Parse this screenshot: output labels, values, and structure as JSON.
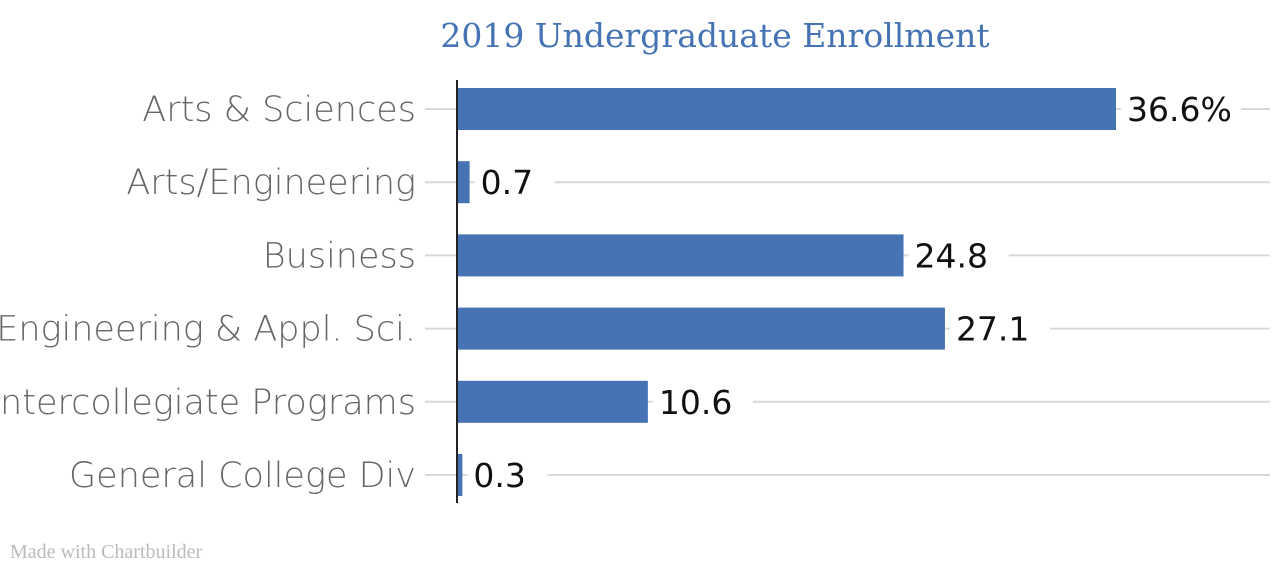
{
  "chart_data": {
    "type": "bar",
    "orientation": "horizontal",
    "title": "2019 Undergraduate Enrollment",
    "categories": [
      "Arts & Sciences",
      "Arts/Engineering",
      "Business",
      "Engineering & Appl. Sci.",
      "Intercollegiate Programs",
      "General College Div"
    ],
    "values": [
      36.6,
      0.7,
      24.8,
      27.1,
      10.6,
      0.3
    ],
    "data_labels": [
      "36.6%",
      "0.7",
      "24.8",
      "27.1",
      "10.6",
      "0.3"
    ],
    "xlim": [
      0,
      36.6
    ],
    "grid": true,
    "legend": "none",
    "bar_color": "#4573b3"
  },
  "footer": {
    "credit": "Made with Chartbuilder"
  }
}
